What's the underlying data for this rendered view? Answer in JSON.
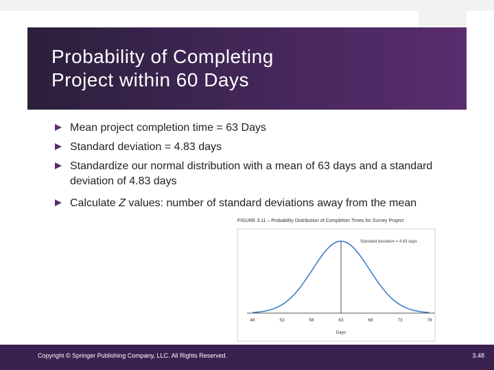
{
  "slide": {
    "title_line1": "Probability of Completing",
    "title_line2": "Project within 60 Days",
    "bullets": [
      "Mean project completion time = 63 Days",
      "Standard deviation = 4.83 days",
      "Standardize our normal distribution with a mean of 63 days and a standard deviation of 4.83 days"
    ],
    "last_bullet": {
      "before": "Calculate ",
      "emph": "Z",
      "after": " values: number of standard deviations away from the mean"
    }
  },
  "figure": {
    "caption": "FIGURE 3.11 – Probability Distribution of Completion Times for Survey Project",
    "annotation": "Standard deviation = 4.83 days",
    "x_label": "Days",
    "x_ticks": [
      "48",
      "53",
      "58",
      "63",
      "68",
      "73",
      "78"
    ]
  },
  "chart_data": {
    "type": "area",
    "title": "FIGURE 3.11 – Probability Distribution of Completion Times for Survey Project",
    "xlabel": "Days",
    "ylabel": "",
    "distribution": "normal",
    "mean": 63,
    "std_dev": 4.83,
    "xlim": [
      48,
      78
    ],
    "x_ticks": [
      48,
      53,
      58,
      63,
      68,
      73,
      78
    ],
    "x_tick_labels": [
      "48",
      "53",
      "58",
      "63",
      "68",
      "73",
      "78"
    ],
    "annotation": "Standard deviation = 4.83 days",
    "line_color": "#3a7fc4"
  },
  "footer": {
    "copyright": "Copyright © Springer Publishing Company, LLC. All Rights Reserved.",
    "page": "3.48"
  },
  "colors": {
    "title_band": "#3e2553",
    "footer": "#3b2150",
    "bullet": "#5a2d6e",
    "curve": "#3a7fc4"
  }
}
